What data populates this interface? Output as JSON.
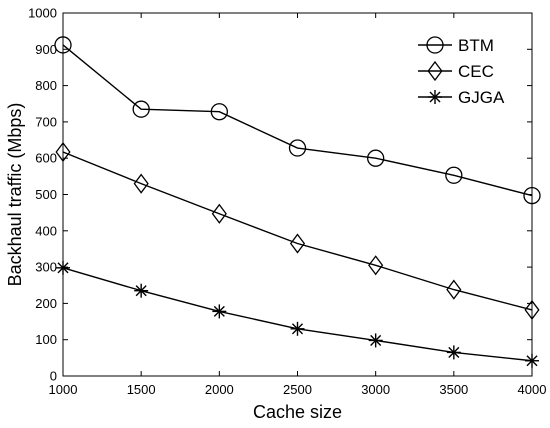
{
  "chart_data": {
    "type": "line",
    "xlabel": "Cache size",
    "ylabel": "Backhaul traffic (Mbps)",
    "x": [
      1000,
      1500,
      2000,
      2500,
      3000,
      3500,
      4000
    ],
    "xlim": [
      1000,
      4000
    ],
    "ylim": [
      0,
      1000
    ],
    "xticks": [
      1000,
      1500,
      2000,
      2500,
      3000,
      3500,
      4000
    ],
    "yticks": [
      0,
      100,
      200,
      300,
      400,
      500,
      600,
      700,
      800,
      900,
      1000
    ],
    "grid": false,
    "legend_position": "top-right",
    "series": [
      {
        "name": "BTM",
        "marker": "circle",
        "color": "#000000",
        "values": [
          912,
          735,
          728,
          628,
          600,
          553,
          497
        ]
      },
      {
        "name": "CEC",
        "marker": "diamond",
        "color": "#000000",
        "values": [
          617,
          530,
          447,
          365,
          305,
          238,
          182
        ]
      },
      {
        "name": "GJGA",
        "marker": "asterisk",
        "color": "#000000",
        "values": [
          298,
          235,
          178,
          130,
          98,
          65,
          42
        ]
      }
    ]
  }
}
